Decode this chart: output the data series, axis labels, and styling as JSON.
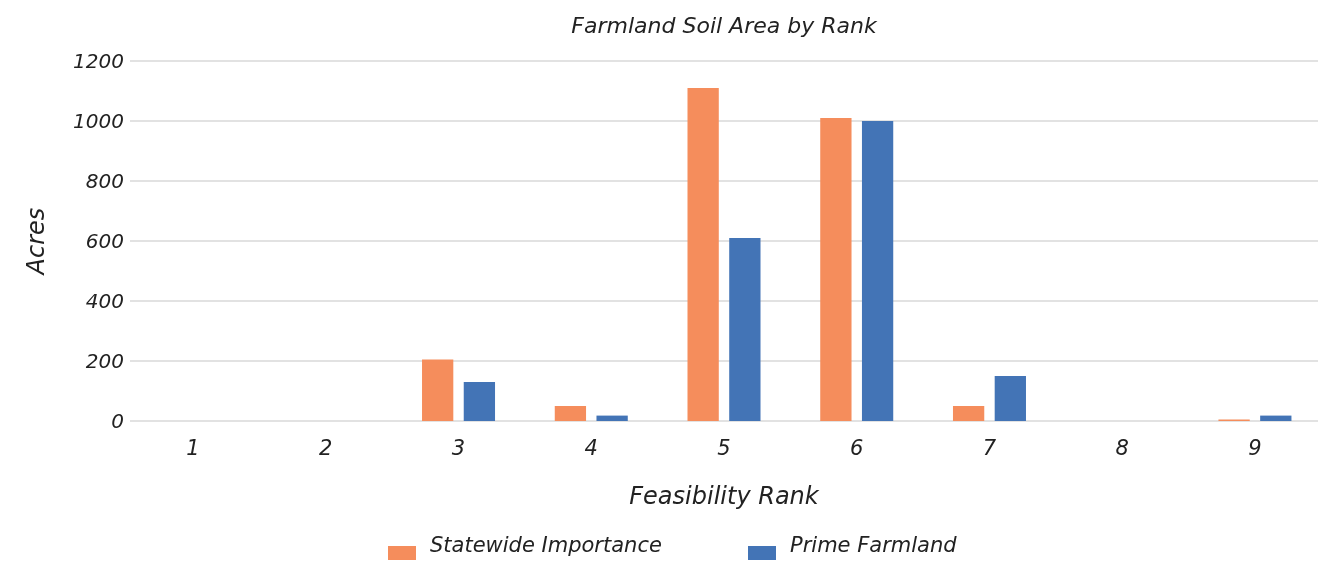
{
  "chart_data": {
    "type": "bar",
    "title": "Farmland Soil Area by Rank",
    "xlabel": "Feasibility Rank",
    "ylabel": "Acres",
    "categories": [
      "1",
      "2",
      "3",
      "4",
      "5",
      "6",
      "7",
      "8",
      "9"
    ],
    "series": [
      {
        "name": "Statewide Importance",
        "color": "#f58d5c",
        "values": [
          0,
          0,
          205,
          50,
          1110,
          1010,
          50,
          0,
          5
        ]
      },
      {
        "name": "Prime Farmland",
        "color": "#4374b6",
        "values": [
          0,
          0,
          130,
          18,
          610,
          1000,
          150,
          null,
          18
        ]
      }
    ],
    "ylim": [
      0,
      1200
    ],
    "yticks": [
      0,
      200,
      400,
      600,
      800,
      1000,
      1200
    ],
    "grid": "y",
    "legend": "bottom"
  }
}
